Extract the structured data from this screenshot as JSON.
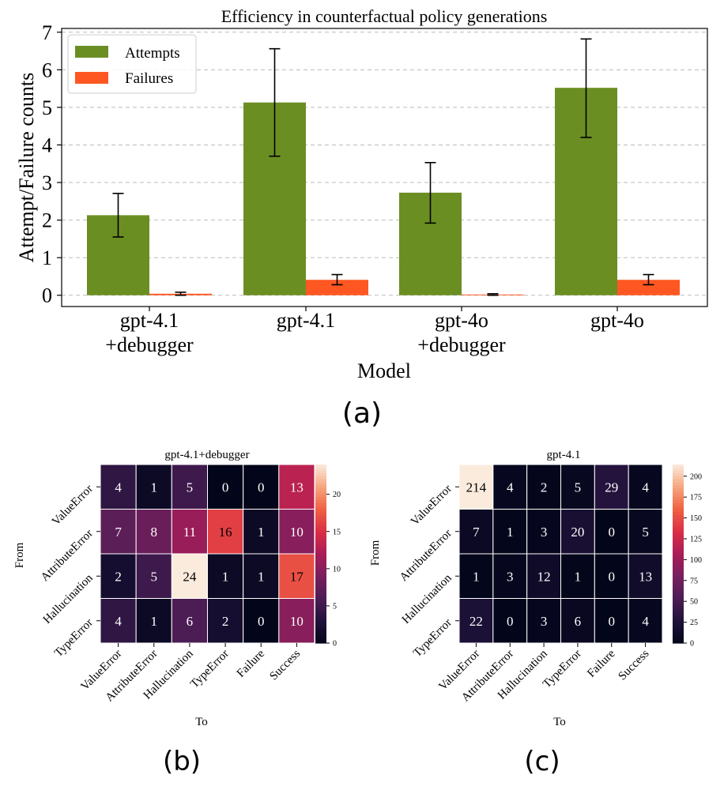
{
  "chart_data": [
    {
      "type": "bar",
      "title": "Efficiency in counterfactual policy generations",
      "xlabel": "Model",
      "ylabel": "Attempt/Failure counts",
      "categories": [
        "gpt-4.1\n+debugger",
        "gpt-4.1",
        "gpt-4o\n+debugger",
        "gpt-4o"
      ],
      "series": [
        {
          "name": "Attempts",
          "color": "#6b8e23",
          "values": [
            2.13,
            5.13,
            2.73,
            5.52
          ],
          "err_low": [
            1.55,
            3.7,
            1.92,
            4.2
          ],
          "err_high": [
            2.71,
            6.56,
            3.53,
            6.82
          ]
        },
        {
          "name": "Failures",
          "color": "#ff5722",
          "values": [
            0.04,
            0.41,
            0.02,
            0.41
          ],
          "err_low": [
            0.0,
            0.28,
            0.0,
            0.28
          ],
          "err_high": [
            0.08,
            0.55,
            0.04,
            0.55
          ]
        }
      ],
      "ylim": [
        -0.3,
        7.1
      ],
      "yticks": [
        0,
        1,
        2,
        3,
        4,
        5,
        6,
        7
      ],
      "grid": true,
      "legend": "top-left",
      "panel_label": "(a)"
    },
    {
      "type": "heatmap",
      "title": "gpt-4.1+debugger",
      "xlabel": "To",
      "ylabel": "From",
      "rows": [
        "ValueError",
        "AttributeError",
        "Hallucination",
        "TypeError"
      ],
      "cols": [
        "ValueError",
        "AttributeError",
        "Hallucination",
        "TypeError",
        "Failure",
        "Success"
      ],
      "values": [
        [
          4,
          1,
          5,
          0,
          0,
          13
        ],
        [
          7,
          8,
          11,
          16,
          1,
          10
        ],
        [
          2,
          5,
          24,
          1,
          1,
          17
        ],
        [
          4,
          1,
          6,
          2,
          0,
          10
        ]
      ],
      "vmin": 0,
      "vmax": 24,
      "colorbar_ticks": [
        0,
        5,
        10,
        15,
        20
      ],
      "panel_label": "(b)"
    },
    {
      "type": "heatmap",
      "title": "gpt-4.1",
      "xlabel": "To",
      "ylabel": "From",
      "rows": [
        "ValueError",
        "AttributeError",
        "Hallucination",
        "TypeError"
      ],
      "cols": [
        "ValueError",
        "AttributeError",
        "Hallucination",
        "TypeError",
        "Failure",
        "Success"
      ],
      "values": [
        [
          214,
          4,
          2,
          5,
          29,
          4
        ],
        [
          7,
          1,
          3,
          20,
          0,
          5
        ],
        [
          1,
          3,
          12,
          1,
          0,
          13
        ],
        [
          22,
          0,
          3,
          6,
          0,
          4
        ]
      ],
      "vmin": 0,
      "vmax": 214,
      "colorbar_ticks": [
        0,
        25,
        50,
        75,
        100,
        125,
        150,
        175,
        200
      ],
      "panel_label": "(c)"
    }
  ]
}
